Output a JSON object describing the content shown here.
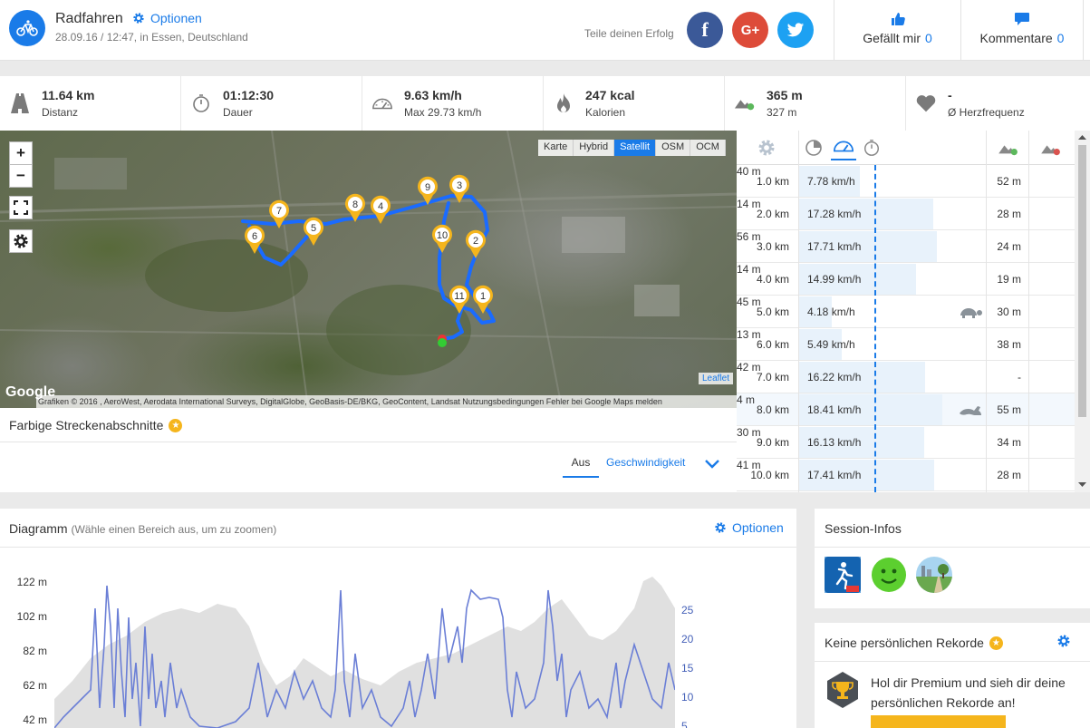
{
  "activity": {
    "title": "Radfahren",
    "options_label": "Optionen",
    "subtitle": "28.09.16 / 12:47, in Essen, Deutschland",
    "icon": "bicycle-icon"
  },
  "share": {
    "label": "Teile deinen Erfolg",
    "facebook_glyph": "f",
    "google_glyph": "G+",
    "colors": {
      "facebook": "#3b5998",
      "google": "#dd4b39",
      "twitter": "#1da1f2"
    }
  },
  "social": {
    "like_label": "Gefällt mir",
    "like_count": "0",
    "comment_label": "Kommentare",
    "comment_count": "0"
  },
  "stats": [
    {
      "icon": "road-icon",
      "value": "11.64 km",
      "label": "Distanz"
    },
    {
      "icon": "stopwatch-icon",
      "value": "01:12:30",
      "label": "Dauer"
    },
    {
      "icon": "speedometer-icon",
      "value": "9.63 km/h",
      "label": "Max 29.73 km/h"
    },
    {
      "icon": "flame-icon",
      "value": "247 kcal",
      "label": "Kalorien"
    },
    {
      "icon": "elevation-icon",
      "value": "365 m",
      "label": "327 m"
    },
    {
      "icon": "heart-icon",
      "value": "-",
      "label": "Ø Herzfrequenz"
    }
  ],
  "map": {
    "zoom_in": "+",
    "zoom_out": "−",
    "layers": [
      "Karte",
      "Hybrid",
      "Satellit",
      "OSM",
      "OCM"
    ],
    "active_layer": "Satellit",
    "attribution": "Grafiken © 2016 , AeroWest, Aerodata International Surveys, DigitalGlobe, GeoBasis-DE/BKG, GeoContent, Landsat     Nutzungsbedingungen     Fehler bei Google Maps melden",
    "leaflet": "Leaflet",
    "google": "Google",
    "route_color": "#1a6bff",
    "marker_color": "#f5b51c",
    "markers": [
      "1",
      "2",
      "3",
      "4",
      "5",
      "6",
      "7",
      "8",
      "9",
      "10",
      "11"
    ]
  },
  "segments": {
    "title": "Farbige Streckenabschnitte",
    "off_label": "Aus",
    "speed_label": "Geschwindigkeit"
  },
  "splits": {
    "rows": [
      {
        "km": "1.0 km",
        "speed": "7.78 km/h",
        "speed_value": 7.78,
        "up": "52 m",
        "down": "40 m",
        "icon": ""
      },
      {
        "km": "2.0 km",
        "speed": "17.28 km/h",
        "speed_value": 17.28,
        "up": "28 m",
        "down": "14 m",
        "icon": ""
      },
      {
        "km": "3.0 km",
        "speed": "17.71 km/h",
        "speed_value": 17.71,
        "up": "24 m",
        "down": "56 m",
        "icon": ""
      },
      {
        "km": "4.0 km",
        "speed": "14.99 km/h",
        "speed_value": 14.99,
        "up": "19 m",
        "down": "14 m",
        "icon": ""
      },
      {
        "km": "5.0 km",
        "speed": "4.18 km/h",
        "speed_value": 4.18,
        "up": "30 m",
        "down": "45 m",
        "icon": "turtle-icon"
      },
      {
        "km": "6.0 km",
        "speed": "5.49 km/h",
        "speed_value": 5.49,
        "up": "38 m",
        "down": "13 m",
        "icon": ""
      },
      {
        "km": "7.0 km",
        "speed": "16.22 km/h",
        "speed_value": 16.22,
        "up": "-",
        "down": "42 m",
        "icon": ""
      },
      {
        "km": "8.0 km",
        "speed": "18.41 km/h",
        "speed_value": 18.41,
        "up": "55 m",
        "down": "4 m",
        "icon": "rabbit-icon"
      },
      {
        "km": "9.0 km",
        "speed": "16.13 km/h",
        "speed_value": 16.13,
        "up": "34 m",
        "down": "30 m",
        "icon": ""
      },
      {
        "km": "10.0 km",
        "speed": "17.41 km/h",
        "speed_value": 17.41,
        "up": "28 m",
        "down": "41 m",
        "icon": ""
      }
    ],
    "average_speed": 9.63
  },
  "diagram": {
    "title": "Diagramm",
    "hint": "(Wähle einen Bereich aus, um zu zoomen)",
    "options_label": "Optionen",
    "elevation_ticks": [
      "122 m",
      "102 m",
      "82 m",
      "62 m",
      "42 m"
    ],
    "speed_ticks": [
      "25",
      "20",
      "15",
      "10",
      "5"
    ],
    "elevation_color": "#e0e0e0",
    "speed_color": "#6b7fd6"
  },
  "session": {
    "title": "Session-Infos",
    "icons": [
      "runtastic-pro-icon",
      "smiley-icon",
      "landscape-icon"
    ]
  },
  "records": {
    "title": "Keine persönlichen Rekorde",
    "text": "Hol dir Premium und sieh dir deine persönlichen Rekorde an!"
  }
}
